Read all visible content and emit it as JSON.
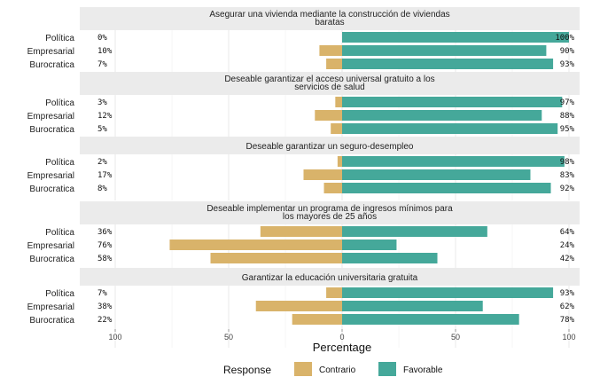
{
  "chart_data": {
    "type": "bar",
    "orientation": "horizontal-diverging",
    "xlabel": "Percentage",
    "x_ticks": [
      "100",
      "50",
      "0",
      "50",
      "100"
    ],
    "xlim": [
      -100,
      100
    ],
    "legend": {
      "title": "Response",
      "placement": "bottom",
      "items": [
        {
          "label": "Contrario",
          "color": "#d9b36a"
        },
        {
          "label": "Favorable",
          "color": "#45a89a"
        }
      ]
    },
    "grid": true,
    "panels": [
      {
        "title_lines": [
          "Asegurar una vivienda mediante la construcción de viviendas",
          "baratas"
        ],
        "rows": [
          {
            "group": "Política",
            "contrario": 0,
            "favorable": 100,
            "left_label": "0%",
            "right_label": "100%"
          },
          {
            "group": "Empresarial",
            "contrario": 10,
            "favorable": 90,
            "left_label": "10%",
            "right_label": "90%"
          },
          {
            "group": "Burocratica",
            "contrario": 7,
            "favorable": 93,
            "left_label": "7%",
            "right_label": "93%"
          }
        ]
      },
      {
        "title_lines": [
          "Deseable garantizar el acceso universal gratuito a los",
          "servicios de salud"
        ],
        "rows": [
          {
            "group": "Política",
            "contrario": 3,
            "favorable": 97,
            "left_label": "3%",
            "right_label": "97%"
          },
          {
            "group": "Empresarial",
            "contrario": 12,
            "favorable": 88,
            "left_label": "12%",
            "right_label": "88%"
          },
          {
            "group": "Burocratica",
            "contrario": 5,
            "favorable": 95,
            "left_label": "5%",
            "right_label": "95%"
          }
        ]
      },
      {
        "title_lines": [
          "Deseable garantizar un seguro-desempleo"
        ],
        "rows": [
          {
            "group": "Política",
            "contrario": 2,
            "favorable": 98,
            "left_label": "2%",
            "right_label": "98%"
          },
          {
            "group": "Empresarial",
            "contrario": 17,
            "favorable": 83,
            "left_label": "17%",
            "right_label": "83%"
          },
          {
            "group": "Burocratica",
            "contrario": 8,
            "favorable": 92,
            "left_label": "8%",
            "right_label": "92%"
          }
        ]
      },
      {
        "title_lines": [
          "Deseable implementar un programa de ingresos mínimos para",
          "los mayores de 25 años"
        ],
        "rows": [
          {
            "group": "Política",
            "contrario": 36,
            "favorable": 64,
            "left_label": "36%",
            "right_label": "64%"
          },
          {
            "group": "Empresarial",
            "contrario": 76,
            "favorable": 24,
            "left_label": "76%",
            "right_label": "24%"
          },
          {
            "group": "Burocratica",
            "contrario": 58,
            "favorable": 42,
            "left_label": "58%",
            "right_label": "42%"
          }
        ]
      },
      {
        "title_lines": [
          "Garantizar la educación universitaria gratuita"
        ],
        "rows": [
          {
            "group": "Política",
            "contrario": 7,
            "favorable": 93,
            "left_label": "7%",
            "right_label": "93%"
          },
          {
            "group": "Empresarial",
            "contrario": 38,
            "favorable": 62,
            "left_label": "38%",
            "right_label": "62%"
          },
          {
            "group": "Burocratica",
            "contrario": 22,
            "favorable": 78,
            "left_label": "22%",
            "right_label": "78%"
          }
        ]
      }
    ]
  }
}
